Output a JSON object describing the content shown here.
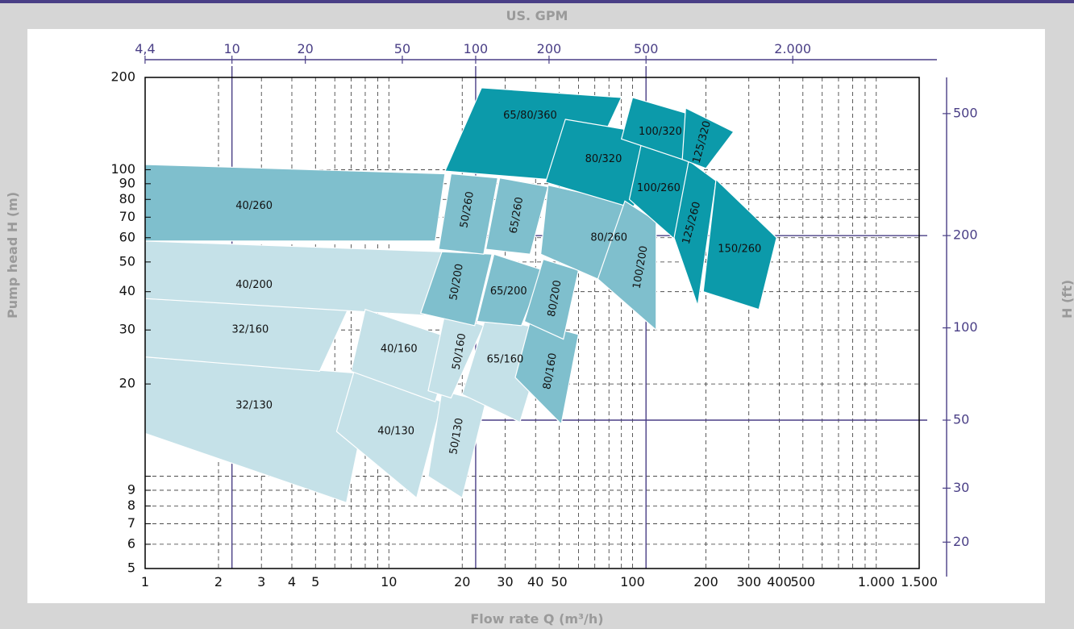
{
  "colors": {
    "background": "#d6d6d6",
    "panel": "#ffffff",
    "accent": "#4a3f86",
    "axis_title": "#9a9a9a",
    "zone_dark": "#0c9aaa",
    "zone_mid": "#7fbfcd",
    "zone_light": "#c5e1e8"
  },
  "chart_data": {
    "type": "area",
    "xlabel": "Flow rate Q (m³/h)",
    "ylabel": "Pump head H (m)",
    "x2label": "US. GPM",
    "y2label": "H (ft)",
    "xscale": "log",
    "yscale": "log",
    "xlim": [
      1,
      1500
    ],
    "ylim": [
      5,
      200
    ],
    "grid": true,
    "x_ticks": [
      "1",
      "2",
      "3",
      "4",
      "5",
      "10",
      "20",
      "30",
      "40",
      "50",
      "100",
      "200",
      "300",
      "400",
      "500",
      "1.000",
      "1.500"
    ],
    "x_tick_values": [
      1,
      2,
      3,
      4,
      5,
      10,
      20,
      30,
      40,
      50,
      100,
      200,
      300,
      400,
      500,
      1000,
      1500
    ],
    "y_ticks": [
      "5",
      "6",
      "7",
      "8",
      "9",
      "20",
      "30",
      "40",
      "50",
      "60",
      "70",
      "80",
      "90",
      "100",
      "200"
    ],
    "y_tick_values": [
      5,
      6,
      7,
      8,
      9,
      20,
      30,
      40,
      50,
      60,
      70,
      80,
      90,
      100,
      200
    ],
    "x2_ticks": [
      "4,4",
      "10",
      "20",
      "50",
      "100",
      "200",
      "500",
      "2.000"
    ],
    "x2_tick_values": [
      4.4,
      10,
      20,
      50,
      100,
      200,
      500,
      2000
    ],
    "y2_ticks": [
      "20",
      "30",
      "50",
      "100",
      "200",
      "500"
    ],
    "y2_tick_values": [
      20,
      30,
      50,
      100,
      200,
      500
    ],
    "reference_lines": [
      {
        "gpm": 10,
        "note": "vertical"
      },
      {
        "gpm": 100,
        "note": "vertical"
      },
      {
        "gpm": 500,
        "note": "vertical"
      },
      {
        "ft": 50,
        "note": "horizontal"
      },
      {
        "ft": 200,
        "note": "horizontal"
      }
    ],
    "zones": [
      {
        "label": "32/130",
        "shade": "light",
        "points": [
          [
            1,
            24.5
          ],
          [
            8.6,
            21.5
          ],
          [
            6.7,
            8.2
          ],
          [
            1,
            13.8
          ]
        ],
        "label_at": [
          2.8,
          17
        ]
      },
      {
        "label": "32/160",
        "shade": "light",
        "points": [
          [
            1,
            38
          ],
          [
            6.8,
            35
          ],
          [
            5.2,
            22
          ],
          [
            1,
            24.5
          ]
        ],
        "label_at": [
          2.7,
          30
        ]
      },
      {
        "label": "40/200",
        "shade": "light",
        "points": [
          [
            1,
            58.5
          ],
          [
            16.5,
            54
          ],
          [
            14,
            33.5
          ],
          [
            1,
            38
          ]
        ],
        "label_at": [
          2.8,
          42
        ]
      },
      {
        "label": "40/260",
        "shade": "mid",
        "points": [
          [
            1,
            104
          ],
          [
            17,
            97
          ],
          [
            15.5,
            58.5
          ],
          [
            1,
            58.5
          ]
        ],
        "label_at": [
          2.8,
          76
        ]
      },
      {
        "label": "40/130",
        "shade": "light",
        "points": [
          [
            7.2,
            22
          ],
          [
            16.5,
            17.5
          ],
          [
            13,
            8.5
          ],
          [
            6.1,
            14
          ]
        ],
        "label_at": [
          10.7,
          14
        ]
      },
      {
        "label": "40/160",
        "shade": "light",
        "points": [
          [
            8,
            35
          ],
          [
            18.5,
            28
          ],
          [
            15.5,
            17.5
          ],
          [
            7,
            22
          ]
        ],
        "label_at": [
          11,
          26
        ]
      },
      {
        "label": "50/130",
        "shade": "light",
        "points": [
          [
            16.5,
            19
          ],
          [
            25,
            17.5
          ],
          [
            20,
            8.5
          ],
          [
            14.5,
            10
          ]
        ],
        "label_at": [
          19,
          13.5
        ],
        "rotate": -80
      },
      {
        "label": "50/160",
        "shade": "light",
        "points": [
          [
            17,
            34
          ],
          [
            24.5,
            31
          ],
          [
            18,
            18
          ],
          [
            14.5,
            19
          ]
        ],
        "label_at": [
          19.5,
          25.5
        ],
        "rotate": -80
      },
      {
        "label": "50/200",
        "shade": "mid",
        "points": [
          [
            16.5,
            54
          ],
          [
            26.5,
            53
          ],
          [
            22.5,
            31
          ],
          [
            13.5,
            34
          ]
        ],
        "label_at": [
          19,
          43
        ],
        "rotate": -80
      },
      {
        "label": "50/260",
        "shade": "mid",
        "points": [
          [
            18,
            97
          ],
          [
            28,
            94
          ],
          [
            24.5,
            53
          ],
          [
            16,
            55
          ]
        ],
        "label_at": [
          21,
          74
        ],
        "rotate": -80
      },
      {
        "label": "65/160",
        "shade": "light",
        "points": [
          [
            25,
            33
          ],
          [
            45,
            30
          ],
          [
            34.5,
            15
          ],
          [
            20,
            18.5
          ]
        ],
        "label_at": [
          30,
          24
        ]
      },
      {
        "label": "65/200",
        "shade": "mid",
        "points": [
          [
            27,
            53
          ],
          [
            43,
            47
          ],
          [
            35,
            31
          ],
          [
            23,
            32
          ]
        ],
        "label_at": [
          31,
          40
        ]
      },
      {
        "label": "65/260",
        "shade": "mid",
        "points": [
          [
            28.5,
            94
          ],
          [
            45,
            88
          ],
          [
            38,
            53
          ],
          [
            25,
            55
          ]
        ],
        "label_at": [
          33.5,
          71
        ],
        "rotate": -80
      },
      {
        "label": "65/80/360",
        "shade": "dark",
        "points": [
          [
            24,
            185
          ],
          [
            90,
            172
          ],
          [
            62,
            91
          ],
          [
            17,
            99
          ]
        ],
        "label_at": [
          38,
          150
        ]
      },
      {
        "label": "80/160",
        "shade": "mid",
        "points": [
          [
            38,
            32
          ],
          [
            60,
            29
          ],
          [
            51,
            14.8
          ],
          [
            33,
            21
          ]
        ],
        "label_at": [
          46,
          22
        ],
        "rotate": -80
      },
      {
        "label": "80/200",
        "shade": "mid",
        "points": [
          [
            43,
            51
          ],
          [
            60,
            47
          ],
          [
            52,
            28
          ],
          [
            36,
            32
          ]
        ],
        "label_at": [
          48,
          38
        ],
        "rotate": -80
      },
      {
        "label": "80/260",
        "shade": "mid",
        "points": [
          [
            45,
            89
          ],
          [
            95,
            78
          ],
          [
            125,
            30
          ],
          [
            72,
            44
          ],
          [
            42,
            53
          ]
        ],
        "label_at": [
          80,
          60
        ]
      },
      {
        "label": "80/320",
        "shade": "dark",
        "points": [
          [
            53,
            146
          ],
          [
            150,
            127
          ],
          [
            100,
            75
          ],
          [
            44,
            91
          ]
        ],
        "label_at": [
          76,
          108
        ]
      },
      {
        "label": "100/200",
        "shade": "mid",
        "points": [
          [
            93,
            79
          ],
          [
            125,
            68
          ],
          [
            125,
            30
          ],
          [
            72,
            44
          ]
        ],
        "label_at": [
          108,
          48
        ],
        "rotate": -80
      },
      {
        "label": "100/260",
        "shade": "dark",
        "points": [
          [
            110,
            127
          ],
          [
            170,
            107
          ],
          [
            150,
            59
          ],
          [
            97,
            80
          ]
        ],
        "label_at": [
          128,
          87
        ]
      },
      {
        "label": "100/320",
        "shade": "dark",
        "points": [
          [
            100,
            172
          ],
          [
            170,
            152
          ],
          [
            160,
            108
          ],
          [
            90,
            126
          ]
        ],
        "label_at": [
          130,
          133
        ]
      },
      {
        "label": "125/260",
        "shade": "dark",
        "points": [
          [
            170,
            107
          ],
          [
            220,
            92
          ],
          [
            185,
            36
          ],
          [
            148,
            60
          ]
        ],
        "label_at": [
          175,
          67
        ],
        "rotate": -75
      },
      {
        "label": "125/320",
        "shade": "dark",
        "points": [
          [
            165,
            159
          ],
          [
            260,
            133
          ],
          [
            200,
            101
          ],
          [
            160,
            108
          ]
        ],
        "label_at": [
          193,
          123
        ],
        "rotate": -75
      },
      {
        "label": "150/260",
        "shade": "dark",
        "points": [
          [
            220,
            93
          ],
          [
            390,
            60
          ],
          [
            330,
            35
          ],
          [
            195,
            40
          ]
        ],
        "label_at": [
          275,
          55
        ]
      }
    ]
  }
}
